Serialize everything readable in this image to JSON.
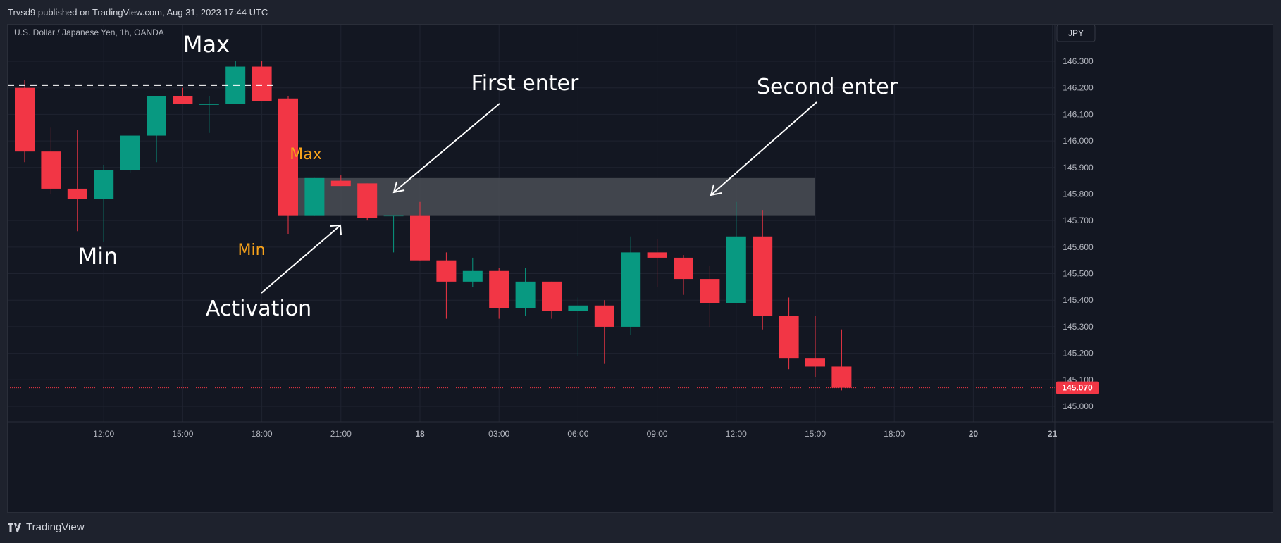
{
  "header": {
    "publish_line": "Trvsd9 published on TradingView.com, Aug 31, 2023 17:44 UTC",
    "symbol_line": "U.S. Dollar / Japanese Yen, 1h, OANDA",
    "currency_button": "JPY"
  },
  "footer": {
    "brand": "TradingView"
  },
  "colors": {
    "bg": "#131722",
    "up": "#089981",
    "down": "#f23645",
    "grid": "#1f2330",
    "axis_text": "#b2b5be",
    "zone": "#4a4d55",
    "small_annot": "#f7a21b",
    "price_tag": "#f23645"
  },
  "chart_data": {
    "type": "candlestick",
    "title": "U.S. Dollar / Japanese Yen, 1h, OANDA",
    "y_ticks": [
      "146.300",
      "146.200",
      "146.100",
      "146.000",
      "145.900",
      "145.800",
      "145.700",
      "145.600",
      "145.500",
      "145.400",
      "145.300",
      "145.200",
      "145.100",
      "145.000"
    ],
    "ylim": [
      144.98,
      146.38
    ],
    "x_ticks": [
      "12:00",
      "15:00",
      "18:00",
      "21:00",
      "18",
      "03:00",
      "06:00",
      "09:00",
      "12:00",
      "15:00",
      "18:00",
      "20",
      "21"
    ],
    "last_price": "145.070",
    "candles": [
      {
        "time": "Aug 17 09:00",
        "open": 146.2,
        "high": 146.23,
        "low": 145.92,
        "close": 145.96
      },
      {
        "time": "Aug 17 10:00",
        "open": 145.96,
        "high": 146.05,
        "low": 145.8,
        "close": 145.82
      },
      {
        "time": "Aug 17 11:00",
        "open": 145.82,
        "high": 146.04,
        "low": 145.66,
        "close": 145.78
      },
      {
        "time": "Aug 17 12:00",
        "open": 145.78,
        "high": 145.91,
        "low": 145.62,
        "close": 145.89
      },
      {
        "time": "Aug 17 13:00",
        "open": 145.89,
        "high": 146.02,
        "low": 145.88,
        "close": 146.02
      },
      {
        "time": "Aug 17 14:00",
        "open": 146.02,
        "high": 146.17,
        "low": 145.92,
        "close": 146.17
      },
      {
        "time": "Aug 17 15:00",
        "open": 146.17,
        "high": 146.2,
        "low": 146.14,
        "close": 146.14
      },
      {
        "time": "Aug 17 16:00",
        "open": 146.14,
        "high": 146.17,
        "low": 146.03,
        "close": 146.14
      },
      {
        "time": "Aug 17 17:00",
        "open": 146.14,
        "high": 146.3,
        "low": 146.14,
        "close": 146.28
      },
      {
        "time": "Aug 17 18:00",
        "open": 146.28,
        "high": 146.3,
        "low": 146.15,
        "close": 146.15
      },
      {
        "time": "Aug 17 19:00",
        "open": 146.16,
        "high": 146.17,
        "low": 145.65,
        "close": 145.72
      },
      {
        "time": "Aug 17 20:00",
        "open": 145.72,
        "high": 145.86,
        "low": 145.72,
        "close": 145.86
      },
      {
        "time": "Aug 17 21:00",
        "open": 145.85,
        "high": 145.87,
        "low": 145.83,
        "close": 145.83
      },
      {
        "time": "Aug 17 22:00",
        "open": 145.84,
        "high": 145.84,
        "low": 145.7,
        "close": 145.71
      },
      {
        "time": "Aug 17 23:00",
        "open": 145.72,
        "high": 145.72,
        "low": 145.58,
        "close": 145.72
      },
      {
        "time": "Aug 18 00:00",
        "open": 145.72,
        "high": 145.77,
        "low": 145.55,
        "close": 145.55
      },
      {
        "time": "Aug 18 01:00",
        "open": 145.55,
        "high": 145.58,
        "low": 145.33,
        "close": 145.47
      },
      {
        "time": "Aug 18 02:00",
        "open": 145.47,
        "high": 145.56,
        "low": 145.45,
        "close": 145.51
      },
      {
        "time": "Aug 18 03:00",
        "open": 145.51,
        "high": 145.52,
        "low": 145.33,
        "close": 145.37
      },
      {
        "time": "Aug 18 04:00",
        "open": 145.37,
        "high": 145.52,
        "low": 145.34,
        "close": 145.47
      },
      {
        "time": "Aug 18 05:00",
        "open": 145.47,
        "high": 145.47,
        "low": 145.33,
        "close": 145.36
      },
      {
        "time": "Aug 18 06:00",
        "open": 145.36,
        "high": 145.41,
        "low": 145.19,
        "close": 145.38
      },
      {
        "time": "Aug 18 07:00",
        "open": 145.38,
        "high": 145.4,
        "low": 145.16,
        "close": 145.3
      },
      {
        "time": "Aug 18 08:00",
        "open": 145.3,
        "high": 145.64,
        "low": 145.27,
        "close": 145.58
      },
      {
        "time": "Aug 18 09:00",
        "open": 145.58,
        "high": 145.63,
        "low": 145.45,
        "close": 145.56
      },
      {
        "time": "Aug 18 10:00",
        "open": 145.56,
        "high": 145.57,
        "low": 145.42,
        "close": 145.48
      },
      {
        "time": "Aug 18 11:00",
        "open": 145.48,
        "high": 145.53,
        "low": 145.3,
        "close": 145.39
      },
      {
        "time": "Aug 18 12:00",
        "open": 145.39,
        "high": 145.77,
        "low": 145.39,
        "close": 145.64
      },
      {
        "time": "Aug 18 13:00",
        "open": 145.64,
        "high": 145.74,
        "low": 145.29,
        "close": 145.34
      },
      {
        "time": "Aug 18 14:00",
        "open": 145.34,
        "high": 145.41,
        "low": 145.14,
        "close": 145.18
      },
      {
        "time": "Aug 18 15:00",
        "open": 145.18,
        "high": 145.34,
        "low": 145.11,
        "close": 145.15
      },
      {
        "time": "Aug 18 16:00",
        "open": 145.15,
        "high": 145.29,
        "low": 145.06,
        "close": 145.07
      }
    ],
    "zone": {
      "low": 145.72,
      "high": 145.86,
      "from": "Aug 17 19:00",
      "to": "Aug 18 15:00"
    },
    "dashed_line": {
      "price": 146.21,
      "from": "Aug 17 09:00",
      "to": "Aug 17 19:00"
    },
    "annotations": {
      "max_big": "Max",
      "min_big": "Min",
      "max_small": "Max",
      "min_small": "Min",
      "first_enter": "First enter",
      "second_enter": "Second enter",
      "activation": "Activation"
    }
  }
}
